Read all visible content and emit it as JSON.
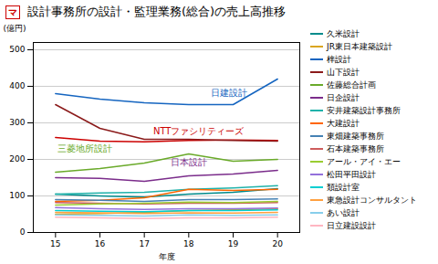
{
  "chart_data": {
    "type": "line",
    "title": "設計事務所の設計・監理業務(総合)の売上高推移",
    "xlabel": "年度",
    "ylabel": "(億円)",
    "x": [
      15,
      16,
      17,
      18,
      19,
      20
    ],
    "xlim": [
      14.5,
      20.5
    ],
    "xticks": [
      15,
      16,
      17,
      18,
      19,
      20
    ],
    "ylim": [
      0,
      520
    ],
    "yticks": [
      0,
      100,
      200,
      300,
      400,
      500
    ],
    "grid": "y",
    "legend": "right",
    "series": [
      {
        "color": "#CC0000",
        "values": [
          260,
          250,
          248,
          252,
          253,
          252
        ]
      },
      {
        "name": "久米設計",
        "color": "#008B8B",
        "values": [
          105,
          100,
          97,
          105,
          110,
          120
        ]
      },
      {
        "name": "JR東日本建築設計",
        "color": "#DAA520",
        "values": [
          50,
          52,
          55,
          60,
          62,
          65
        ]
      },
      {
        "name": "梓設計",
        "color": "#1565C0",
        "values": [
          380,
          365,
          355,
          350,
          350,
          420
        ]
      },
      {
        "name": "山下設計",
        "color": "#8B1A1A",
        "values": [
          350,
          285,
          255,
          255,
          252,
          250
        ]
      },
      {
        "name": "佐藤総合計画",
        "color": "#6aaa2a",
        "values": [
          165,
          175,
          190,
          215,
          195,
          200
        ]
      },
      {
        "name": "日企設計",
        "color": "#7B2D8B",
        "values": [
          150,
          148,
          140,
          155,
          160,
          170
        ]
      },
      {
        "name": "安井建築設計事務所",
        "color": "#20B2AA",
        "values": [
          105,
          108,
          110,
          118,
          122,
          128
        ]
      },
      {
        "name": "大建設計",
        "color": "#FF6600",
        "values": [
          85,
          88,
          95,
          118,
          115,
          118
        ]
      },
      {
        "name": "東畑建築事務所",
        "color": "#4682B4",
        "values": [
          90,
          88,
          85,
          90,
          90,
          92
        ]
      },
      {
        "name": "石本建築事務所",
        "color": "#CD5C5C",
        "values": [
          82,
          80,
          78,
          80,
          80,
          82
        ]
      },
      {
        "name": "アール・アイ・エー",
        "color": "#9ACD32",
        "values": [
          75,
          78,
          80,
          83,
          82,
          85
        ]
      },
      {
        "name": "松田平田設計",
        "color": "#9370DB",
        "values": [
          68,
          65,
          63,
          65,
          65,
          67
        ]
      },
      {
        "name": "類設計室",
        "color": "#00CED1",
        "values": [
          60,
          58,
          57,
          60,
          60,
          62
        ]
      },
      {
        "name": "東急設計コンサルタント",
        "color": "#FFA040",
        "values": [
          55,
          54,
          52,
          54,
          53,
          55
        ]
      },
      {
        "name": "あい設計",
        "color": "#87CEEB",
        "values": [
          48,
          47,
          45,
          48,
          47,
          48
        ]
      },
      {
        "name": "日立建設設計",
        "color": "#FFB6C1",
        "values": [
          42,
          40,
          38,
          40,
          40,
          42
        ]
      }
    ],
    "annotations": [
      {
        "text": "マ",
        "color": "#CC0000"
      },
      {
        "text": "日建設計",
        "x": 18.5,
        "y": 375,
        "color": "#1565C0"
      },
      {
        "text": "NTTファシリティーズ",
        "x": 17.2,
        "y": 268,
        "color": "#CC0000"
      },
      {
        "text": "三菱地所設計",
        "x": 15.05,
        "y": 222,
        "color": "#6aaa2a"
      },
      {
        "text": "日本設計",
        "x": 17.6,
        "y": 183,
        "color": "#7B2D8B"
      }
    ]
  }
}
